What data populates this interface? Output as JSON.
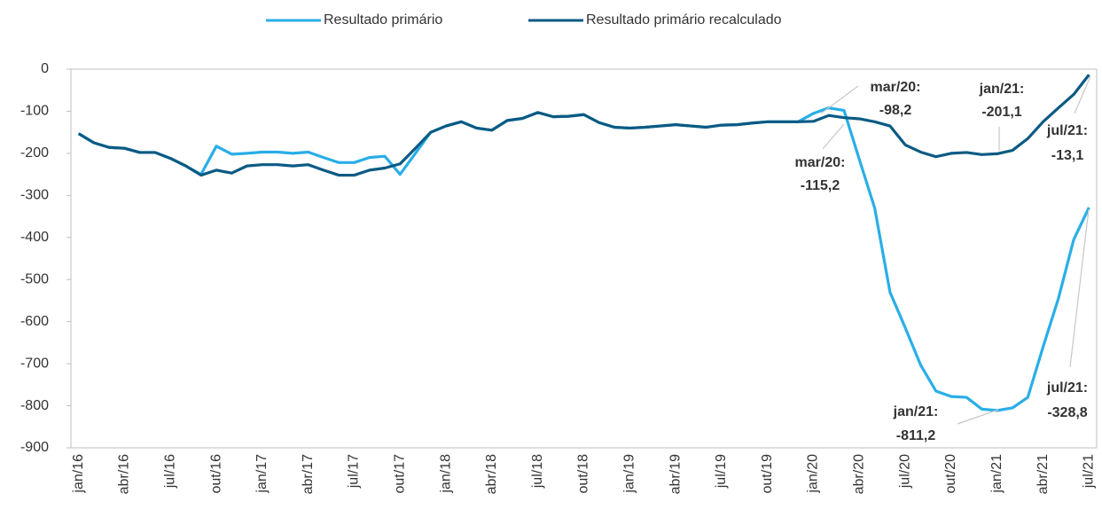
{
  "chart_data": {
    "type": "line",
    "categories": [
      "jan/16",
      null,
      null,
      "abr/16",
      null,
      null,
      "jul/16",
      null,
      null,
      "out/16",
      null,
      null,
      "jan/17",
      null,
      null,
      "abr/17",
      null,
      null,
      "jul/17",
      null,
      null,
      "out/17",
      null,
      null,
      "jan/18",
      null,
      null,
      "abr/18",
      null,
      null,
      "jul/18",
      null,
      null,
      "out/18",
      null,
      null,
      "jan/19",
      null,
      null,
      "abr/19",
      null,
      null,
      "jul/19",
      null,
      null,
      "out/19",
      null,
      null,
      "jan/20",
      null,
      null,
      "abr/20",
      null,
      null,
      "jul/20",
      null,
      null,
      "out/20",
      null,
      null,
      "jan/21",
      null,
      null,
      "abr/21",
      null,
      null,
      "jul/21"
    ],
    "series": [
      {
        "name": "Resultado primário",
        "color": "#29aee8",
        "values": [
          -153,
          -175,
          -186,
          -188,
          -198,
          -198,
          -212,
          -230,
          -250,
          -183,
          -202,
          -200,
          -197,
          -197,
          -200,
          -197,
          -210,
          -222,
          -222,
          -210,
          -207,
          -250,
          -200,
          -150,
          -135,
          -125,
          -140,
          -145,
          -122,
          -117,
          -103,
          -113,
          -112,
          -108,
          -127,
          -138,
          -140,
          -138,
          -135,
          -132,
          -135,
          -138,
          -133,
          -132,
          -128,
          -125,
          -125,
          -125,
          -105,
          -92,
          -98.2,
          -215,
          -330,
          -530,
          -615,
          -703,
          -765,
          -778,
          -780,
          -808,
          -811.2,
          -805,
          -780,
          -660,
          -545,
          -405,
          -328.8
        ]
      },
      {
        "name": "Resultado primário recalculado",
        "color": "#0b5a83",
        "values": [
          -153,
          -175,
          -186,
          -188,
          -198,
          -198,
          -212,
          -230,
          -252,
          -240,
          -247,
          -230,
          -227,
          -227,
          -230,
          -227,
          -240,
          -252,
          -252,
          -240,
          -235,
          -225,
          -188,
          -150,
          -135,
          -125,
          -140,
          -145,
          -122,
          -117,
          -103,
          -113,
          -112,
          -108,
          -127,
          -138,
          -140,
          -138,
          -135,
          -132,
          -135,
          -138,
          -133,
          -132,
          -128,
          -125,
          -125,
          -125,
          -124,
          -110,
          -115.2,
          -118,
          -125,
          -135,
          -180,
          -197,
          -208,
          -200,
          -198,
          -203,
          -201.1,
          -193,
          -165,
          -125,
          -92,
          -60,
          -13.1
        ]
      }
    ],
    "ylim": [
      -900,
      0
    ],
    "yticks": [
      -900,
      -800,
      -700,
      -600,
      -500,
      -400,
      -300,
      -200,
      -100,
      0
    ],
    "legend": "top",
    "annotations": [
      [
        "mar/20:",
        "-98,2"
      ],
      [
        "mar/20:",
        "-115,2"
      ],
      [
        "jan/21:",
        "-201,1"
      ],
      [
        "jul/21:",
        "-13,1"
      ],
      [
        "jul/21:",
        "-328,8"
      ],
      [
        "jan/21:",
        "-811,2"
      ]
    ]
  }
}
